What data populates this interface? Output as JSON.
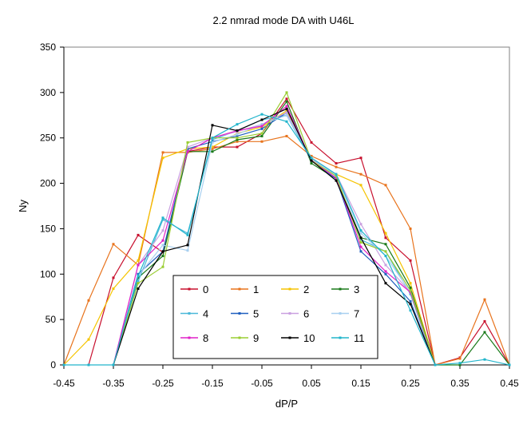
{
  "chart_data": {
    "type": "line",
    "title": "2.2 nmrad mode DA with U46L",
    "xlabel": "dP/P",
    "ylabel": "Ny",
    "xlim": [
      -0.45,
      0.45
    ],
    "ylim": [
      0,
      350
    ],
    "grid": false,
    "legend_position": "bottom-center",
    "x_ticks": [
      "-0.45",
      "-0.35",
      "-0.25",
      "-0.15",
      "-0.05",
      "0.05",
      "0.15",
      "0.25",
      "0.35",
      "0.45"
    ],
    "y_ticks": [
      "0",
      "50",
      "100",
      "150",
      "200",
      "250",
      "300",
      "350"
    ],
    "series": [
      {
        "name": "0",
        "color": "#c8102e",
        "x": [
          -0.4,
          -0.35,
          -0.3,
          -0.25,
          -0.2,
          -0.15,
          -0.1,
          -0.05,
          0.0,
          0.05,
          0.1,
          0.15,
          0.2,
          0.25,
          0.3,
          0.35,
          0.4,
          0.45
        ],
        "y": [
          0,
          96,
          143,
          124,
          235,
          240,
          240,
          255,
          293,
          245,
          222,
          228,
          140,
          115,
          0,
          8,
          48,
          0
        ]
      },
      {
        "name": "1",
        "color": "#e8731c",
        "x": [
          -0.45,
          -0.4,
          -0.35,
          -0.3,
          -0.25,
          -0.2,
          -0.15,
          -0.1,
          -0.05,
          0.0,
          0.05,
          0.1,
          0.15,
          0.2,
          0.25,
          0.3,
          0.35,
          0.4,
          0.45
        ],
        "y": [
          0,
          71,
          133,
          110,
          234,
          234,
          238,
          246,
          246,
          252,
          230,
          218,
          210,
          198,
          150,
          0,
          7,
          72,
          0
        ]
      },
      {
        "name": "2",
        "color": "#f5c400",
        "x": [
          -0.45,
          -0.4,
          -0.35,
          -0.3,
          -0.25,
          -0.2,
          -0.15,
          -0.1,
          -0.05,
          0.0,
          0.05,
          0.1,
          0.15,
          0.2,
          0.25,
          0.3
        ],
        "y": [
          0,
          28,
          84,
          115,
          228,
          238,
          240,
          255,
          262,
          280,
          226,
          210,
          198,
          145,
          90,
          0
        ]
      },
      {
        "name": "3",
        "color": "#1a7a1a",
        "x": [
          -0.35,
          -0.3,
          -0.25,
          -0.2,
          -0.15,
          -0.1,
          -0.05,
          0.0,
          0.05,
          0.1,
          0.15,
          0.2,
          0.25,
          0.3,
          0.35,
          0.4,
          0.45
        ],
        "y": [
          0,
          96,
          120,
          235,
          235,
          248,
          252,
          290,
          222,
          205,
          140,
          133,
          85,
          0,
          0,
          36,
          0
        ]
      },
      {
        "name": "4",
        "color": "#4ab8d9",
        "x": [
          -0.35,
          -0.3,
          -0.25,
          -0.2,
          -0.15,
          -0.1,
          -0.05,
          0.0,
          0.05,
          0.1,
          0.15,
          0.2,
          0.25,
          0.3
        ],
        "y": [
          0,
          92,
          160,
          145,
          248,
          258,
          270,
          275,
          225,
          205,
          138,
          125,
          78,
          0
        ]
      },
      {
        "name": "5",
        "color": "#1f5fbf",
        "x": [
          -0.35,
          -0.3,
          -0.25,
          -0.2,
          -0.15,
          -0.1,
          -0.05,
          0.0,
          0.05,
          0.1,
          0.15,
          0.2,
          0.25,
          0.3
        ],
        "y": [
          0,
          100,
          125,
          238,
          246,
          252,
          260,
          278,
          225,
          205,
          125,
          100,
          70,
          0
        ]
      },
      {
        "name": "6",
        "color": "#c9a0e0",
        "x": [
          -0.35,
          -0.3,
          -0.25,
          -0.2,
          -0.15,
          -0.1,
          -0.05,
          0.0,
          0.05,
          0.1,
          0.15,
          0.2,
          0.25,
          0.3
        ],
        "y": [
          0,
          110,
          148,
          240,
          250,
          257,
          265,
          278,
          226,
          210,
          155,
          110,
          80,
          0
        ]
      },
      {
        "name": "7",
        "color": "#a8d0f0",
        "x": [
          -0.35,
          -0.3,
          -0.25,
          -0.2,
          -0.15,
          -0.1,
          -0.05,
          0.0,
          0.05,
          0.1,
          0.15,
          0.2,
          0.25,
          0.3
        ],
        "y": [
          0,
          98,
          132,
          126,
          245,
          254,
          265,
          275,
          228,
          208,
          145,
          120,
          80,
          0
        ]
      },
      {
        "name": "8",
        "color": "#e020c8",
        "x": [
          -0.35,
          -0.3,
          -0.25,
          -0.2,
          -0.15,
          -0.1,
          -0.05,
          0.0,
          0.05,
          0.1,
          0.15,
          0.2,
          0.25,
          0.3
        ],
        "y": [
          0,
          110,
          137,
          235,
          250,
          258,
          263,
          285,
          225,
          206,
          130,
          103,
          80,
          0
        ]
      },
      {
        "name": "9",
        "color": "#9acd32",
        "x": [
          -0.35,
          -0.3,
          -0.25,
          -0.2,
          -0.15,
          -0.1,
          -0.05,
          0.0,
          0.05,
          0.1,
          0.15,
          0.2,
          0.25,
          0.3
        ],
        "y": [
          0,
          90,
          108,
          245,
          250,
          250,
          255,
          300,
          225,
          208,
          135,
          125,
          82,
          0
        ]
      },
      {
        "name": "10",
        "color": "#000000",
        "x": [
          -0.35,
          -0.3,
          -0.25,
          -0.2,
          -0.15,
          -0.1,
          -0.05,
          0.0,
          0.05,
          0.1,
          0.15,
          0.2,
          0.25,
          0.3
        ],
        "y": [
          0,
          84,
          125,
          132,
          264,
          258,
          270,
          282,
          225,
          203,
          140,
          90,
          67,
          0
        ]
      },
      {
        "name": "11",
        "color": "#22b5cc",
        "x": [
          -0.45,
          -0.4,
          -0.35,
          -0.3,
          -0.25,
          -0.2,
          -0.15,
          -0.1,
          -0.05,
          0.0,
          0.05,
          0.1,
          0.15,
          0.2,
          0.25,
          0.3,
          0.35,
          0.4,
          0.45
        ],
        "y": [
          0,
          0,
          0,
          98,
          162,
          143,
          250,
          265,
          276,
          268,
          228,
          210,
          148,
          120,
          60,
          0,
          2,
          6,
          0
        ]
      }
    ]
  }
}
